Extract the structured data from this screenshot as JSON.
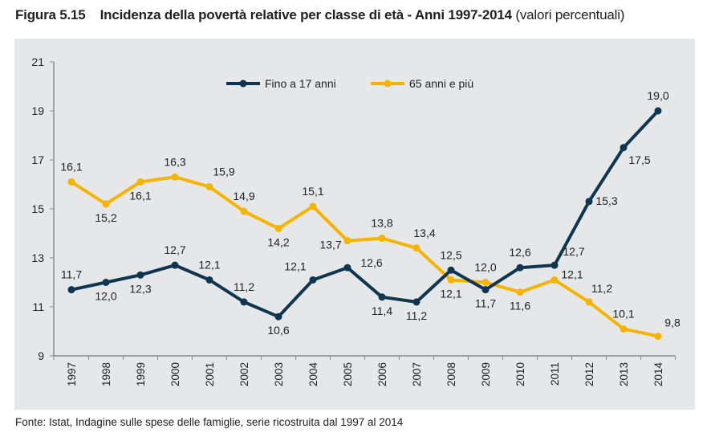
{
  "figure_label": "Figura 5.15",
  "title": "Incidenza della povertà relative per classe di età - Anni 1997-2014",
  "subtitle": "(valori percentuali)",
  "source": "Fonte: Istat, Indagine sulle spese delle famiglie, serie ricostruita dal 1997 al 2014",
  "chart_data": {
    "type": "line",
    "categories": [
      "1997",
      "1998",
      "1999",
      "2000",
      "2001",
      "2002",
      "2003",
      "2004",
      "2005",
      "2006",
      "2007",
      "2008",
      "2009",
      "2010",
      "2011",
      "2012",
      "2013",
      "2014"
    ],
    "ylim": [
      9,
      21
    ],
    "yticks": [
      9,
      11,
      13,
      15,
      17,
      19,
      21
    ],
    "grid": false,
    "legend": "top",
    "series": [
      {
        "name": "Fino a 17 anni",
        "color": "#0e3650",
        "values": [
          11.7,
          12.0,
          12.3,
          12.7,
          12.1,
          11.2,
          10.6,
          12.1,
          12.6,
          11.4,
          11.2,
          12.5,
          11.7,
          12.6,
          12.7,
          15.3,
          17.5,
          19.0
        ]
      },
      {
        "name": "65 anni e più",
        "color": "#f5b400",
        "values": [
          16.1,
          15.2,
          16.1,
          16.3,
          15.9,
          14.9,
          14.2,
          15.1,
          13.7,
          13.8,
          13.4,
          12.1,
          12.0,
          11.6,
          12.1,
          11.2,
          10.1,
          9.8
        ]
      }
    ]
  }
}
